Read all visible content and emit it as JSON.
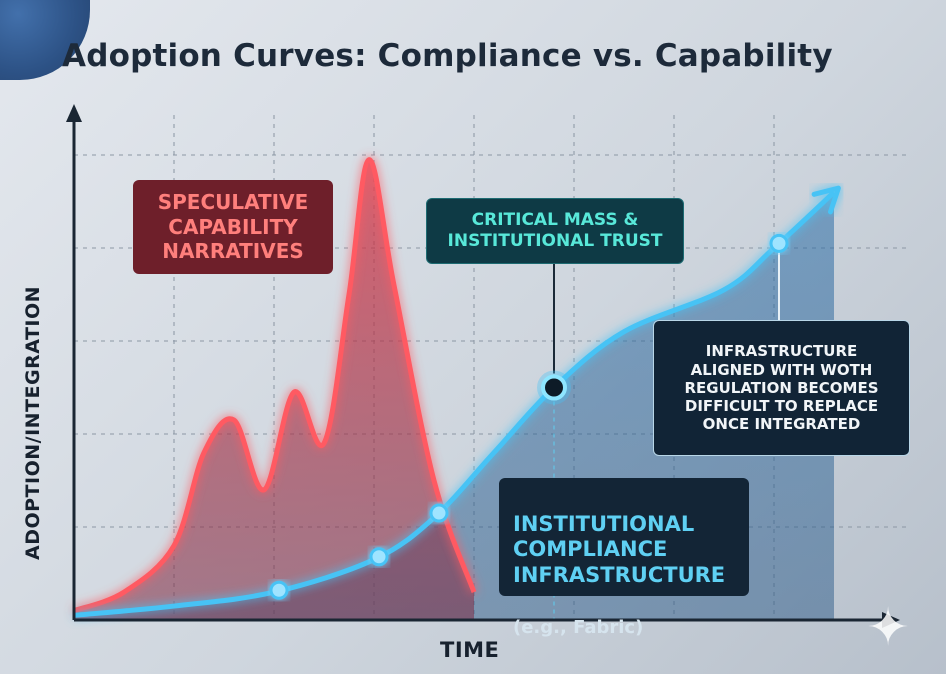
{
  "chart_data": {
    "type": "line",
    "title": "Adoption Curves: Compliance vs. Capability",
    "xlabel": "TIME",
    "ylabel": "ADOPTION/INTEGRATION",
    "xlim": [
      0,
      8
    ],
    "ylim": [
      0,
      5
    ],
    "grid": true,
    "series": [
      {
        "name": "SPECULATIVE CAPABILITY NARRATIVES",
        "color": "#ff4d57",
        "points": [
          [
            0,
            0.1
          ],
          [
            0.5,
            0.3
          ],
          [
            1.0,
            0.8
          ],
          [
            1.3,
            1.8
          ],
          [
            1.6,
            2.15
          ],
          [
            1.9,
            1.4
          ],
          [
            2.2,
            2.45
          ],
          [
            2.5,
            1.9
          ],
          [
            2.75,
            3.5
          ],
          [
            2.95,
            4.95
          ],
          [
            3.2,
            3.6
          ],
          [
            3.6,
            1.5
          ],
          [
            4.0,
            0.3
          ]
        ]
      },
      {
        "name": "INSTITUTIONAL COMPLIANCE INFRASTRUCTURE (e.g., Fabric)",
        "color": "#38b6f0",
        "points": [
          [
            0,
            0.05
          ],
          [
            1.0,
            0.15
          ],
          [
            2.0,
            0.3
          ],
          [
            3.0,
            0.65
          ],
          [
            3.6,
            1.1
          ],
          [
            4.2,
            1.8
          ],
          [
            4.8,
            2.5
          ],
          [
            5.5,
            3.1
          ],
          [
            6.5,
            3.55
          ],
          [
            7.0,
            4.0
          ],
          [
            7.6,
            4.6
          ]
        ],
        "markers": [
          [
            2.05,
            0.32
          ],
          [
            3.05,
            0.68
          ],
          [
            3.65,
            1.15
          ],
          [
            7.05,
            4.05
          ]
        ],
        "highlight": [
          4.8,
          2.5
        ]
      }
    ],
    "annotations": [
      {
        "label": "SPECULATIVE CAPABILITY NARRATIVES",
        "style": "red"
      },
      {
        "label": "CRITICAL MASS & INSTITUTIONAL TRUST",
        "style": "teal"
      },
      {
        "label": "INFRASTRUCTURE ALIGNED WITH WOTH REGULATION BECOMES DIFFICULT TO REPLACE ONCE INTEGRATED",
        "style": "dark"
      },
      {
        "label": "INSTITUTIONAL COMPLIANCE INFRASTRUCTURE",
        "sub": "(e.g., Fabric)",
        "style": "blue"
      }
    ]
  },
  "labels": {
    "spec": "SPECULATIVE\nCAPABILITY\nNARRATIVES",
    "crit": "CRITICAL MASS &\nINSTITUTIONAL TRUST",
    "infra": "INFRASTRUCTURE\nALIGNED WITH WOTH\nREGULATION BECOMES\nDIFFICULT TO REPLACE\nONCE INTEGRATED",
    "inst": "INSTITUTIONAL\nCOMPLIANCE\nINFRASTRUCTURE",
    "inst_sub": "(e.g., Fabric)"
  },
  "icons": {
    "sparkle": "sparkle-icon",
    "corner": "globe-decoration"
  }
}
